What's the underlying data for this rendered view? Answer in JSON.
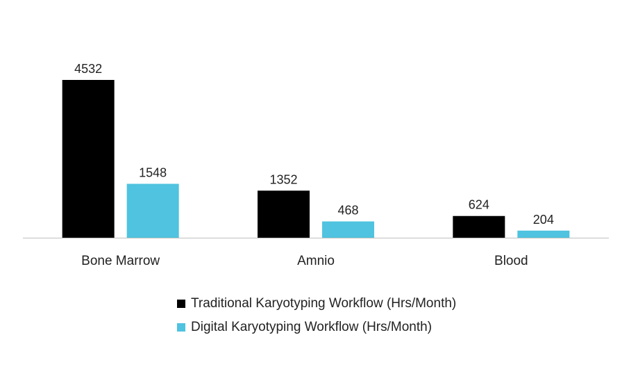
{
  "chart_data": {
    "type": "bar",
    "categories": [
      "Bone Marrow",
      "Amnio",
      "Blood"
    ],
    "series": [
      {
        "name": "Traditional Karyotyping Workflow (Hrs/Month)",
        "values": [
          4532,
          1352,
          624
        ],
        "color": "#000000"
      },
      {
        "name": "Digital Karyotyping Workflow (Hrs/Month)",
        "values": [
          1548,
          468,
          204
        ],
        "color": "#4fc3df"
      }
    ],
    "title": "",
    "xlabel": "",
    "ylabel": "",
    "ylim": [
      0,
      4532
    ],
    "grid": false,
    "legend_position": "bottom",
    "data_labels": true
  }
}
